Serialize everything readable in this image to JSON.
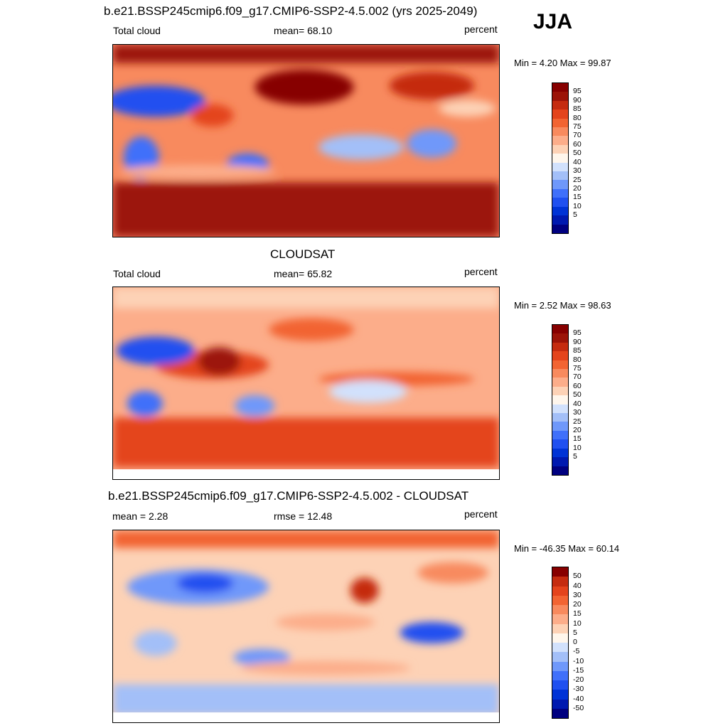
{
  "season": "JJA",
  "colors": {
    "abs": [
      "#000080",
      "#0019b0",
      "#0033d6",
      "#2050f0",
      "#4070fa",
      "#6f98fa",
      "#a3bff8",
      "#d2e1fc",
      "#fff6ec",
      "#fdd2b6",
      "#fcad8a",
      "#f88a5e",
      "#f26432",
      "#e4441c",
      "#c52c10",
      "#9c1408",
      "#870000"
    ],
    "diff": [
      "#000080",
      "#0019b0",
      "#0033d6",
      "#2050f0",
      "#4070fa",
      "#6f98fa",
      "#a3bff8",
      "#d2e1fc",
      "#fff6ec",
      "#fdd2b6",
      "#fcad8a",
      "#f88a5e",
      "#f26432",
      "#e4441c",
      "#c52c10",
      "#870000"
    ]
  },
  "panels": [
    {
      "id": "model",
      "title": "b.e21.BSSP245cmip6.f09_g17.CMIP6-SSP2-4.5.002 (yrs 2025-2049)",
      "left_label": "Total cloud",
      "center_label": "mean=  68.10",
      "units": "percent",
      "minmax": "Min =   4.20 Max =  99.87",
      "colorbar_labels": [
        "95",
        "90",
        "85",
        "80",
        "75",
        "70",
        "60",
        "50",
        "40",
        "30",
        "25",
        "20",
        "15",
        "10",
        "5"
      ]
    },
    {
      "id": "obs",
      "title": "CLOUDSAT",
      "left_label": "Total cloud",
      "center_label": "mean=  65.82",
      "units": "percent",
      "minmax": "Min =   2.52 Max =  98.63",
      "colorbar_labels": [
        "95",
        "90",
        "85",
        "80",
        "75",
        "70",
        "60",
        "50",
        "40",
        "30",
        "25",
        "20",
        "15",
        "10",
        "5"
      ]
    },
    {
      "id": "diff",
      "title": "b.e21.BSSP245cmip6.f09_g17.CMIP6-SSP2-4.5.002 - CLOUDSAT",
      "left_label": "mean =   2.28",
      "center_label": "rmse =  12.48",
      "units": "percent",
      "minmax": "Min = -46.35 Max =  60.14",
      "colorbar_labels": [
        "50",
        "40",
        "30",
        "20",
        "15",
        "10",
        "5",
        "0",
        "-5",
        "-10",
        "-15",
        "-20",
        "-30",
        "-40",
        "-50"
      ]
    }
  ]
}
